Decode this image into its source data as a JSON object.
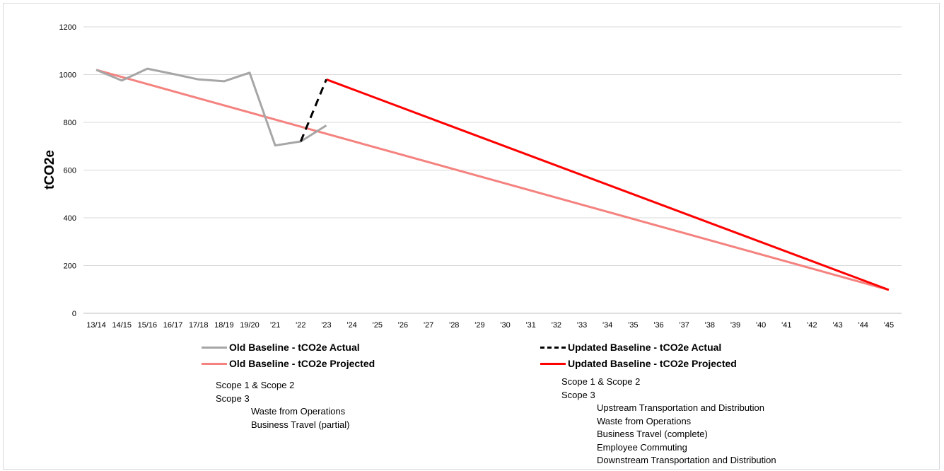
{
  "chart_data": {
    "type": "line",
    "title": "",
    "xlabel": "",
    "ylabel": "tCO2e",
    "ylim": [
      0,
      1200
    ],
    "yticks": [
      0,
      200,
      400,
      600,
      800,
      1000,
      1200
    ],
    "grid": true,
    "legend_position": "bottom",
    "categories": [
      "13/14",
      "14/15",
      "15/16",
      "16/17",
      "17/18",
      "18/19",
      "19/20",
      "'21",
      "'22",
      "'23",
      "'24",
      "'25",
      "'26",
      "'27",
      "'28",
      "'29",
      "'30",
      "'31",
      "'32",
      "'33",
      "'34",
      "'35",
      "'36",
      "'37",
      "'38",
      "'39",
      "'40",
      "'41",
      "'42",
      "'43",
      "'44",
      "'45"
    ],
    "series": [
      {
        "name": "Old Baseline - tCO2e Actual",
        "color": "#a6a6a6",
        "style": "solid",
        "points": [
          [
            "13/14",
            1020
          ],
          [
            "14/15",
            975
          ],
          [
            "15/16",
            1025
          ],
          [
            "16/17",
            1003
          ],
          [
            "17/18",
            980
          ],
          [
            "18/19",
            972
          ],
          [
            "19/20",
            1008
          ],
          [
            "'21",
            703
          ],
          [
            "'22",
            720
          ],
          [
            "'23",
            787
          ]
        ]
      },
      {
        "name": "Updated Baseline -  tCO2e Actual",
        "color": "#000000",
        "style": "dashed",
        "points": [
          [
            "'22",
            720
          ],
          [
            "'23",
            980
          ]
        ]
      },
      {
        "name": "Old Baseline - tCO2e Projected",
        "color": "#f4827f",
        "style": "solid",
        "points": [
          [
            "13/14",
            1020
          ],
          [
            "'45",
            98
          ]
        ]
      },
      {
        "name": "Updated Baseline - tCO2e Projected",
        "color": "#ff0000",
        "style": "solid",
        "points": [
          [
            "'23",
            980
          ],
          [
            "'45",
            98
          ]
        ]
      }
    ]
  },
  "notes_old": [
    "Scope 1 & Scope 2",
    "Scope 3",
    "Waste from Operations",
    "Business Travel (partial)"
  ],
  "notes_updated": [
    "Scope 1 & Scope 2",
    "Scope 3",
    "Upstream Transportation and Distribution",
    "Waste from Operations",
    "Business Travel (complete)",
    "Employee Commuting",
    "Downstream Transportation and Distribution"
  ]
}
